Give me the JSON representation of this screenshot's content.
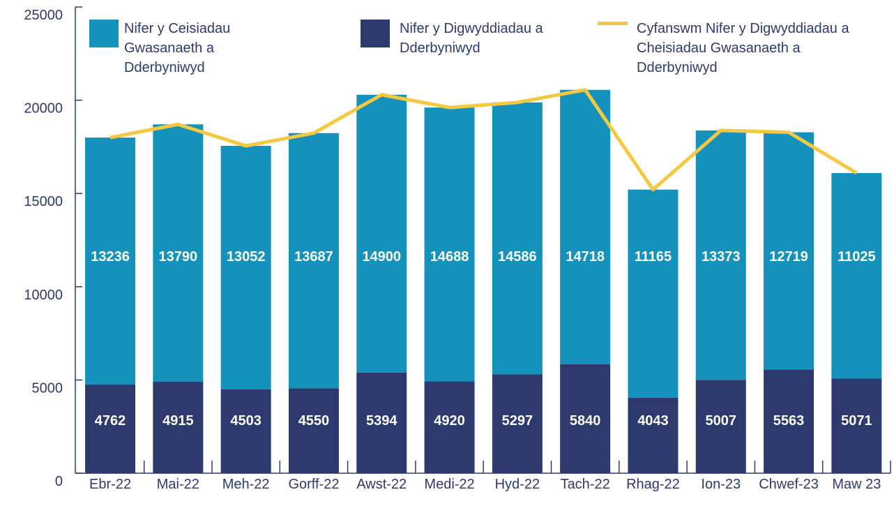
{
  "chart_data": {
    "type": "stacked_bar_line",
    "categories": [
      "Ebr-22",
      "Mai-22",
      "Meh-22",
      "Gorff-22",
      "Awst-22",
      "Medi-22",
      "Hyd-22",
      "Tach-22",
      "Rhag-22",
      "Ion-23",
      "Chwef-23",
      "Maw 23"
    ],
    "series": [
      {
        "name": "Nifer y Ceisiadau Gwasanaeth a Dderbyniwyd",
        "type": "bar",
        "color": "#1592bb",
        "values": [
          13236,
          13790,
          13052,
          13687,
          14900,
          14688,
          14586,
          14718,
          11165,
          13373,
          12719,
          11025
        ]
      },
      {
        "name": "Nifer y Digwyddiadau a Dderbyniwyd",
        "type": "bar",
        "color": "#2e3a6e",
        "values": [
          4762,
          4915,
          4503,
          4550,
          5394,
          4920,
          5297,
          5840,
          4043,
          5007,
          5563,
          5071
        ]
      },
      {
        "name": "Cyfanswm Nifer y Digwyddiadau a Cheisiadau Gwasanaeth a Dderbyniwyd",
        "type": "line",
        "color": "#f5c842",
        "values": [
          17998,
          18705,
          17555,
          18237,
          20294,
          19608,
          19883,
          20558,
          15208,
          18380,
          18282,
          16096
        ]
      }
    ],
    "ylim": [
      0,
      25000
    ],
    "yticks": [
      0,
      5000,
      10000,
      15000,
      20000,
      25000
    ],
    "grid": false
  }
}
